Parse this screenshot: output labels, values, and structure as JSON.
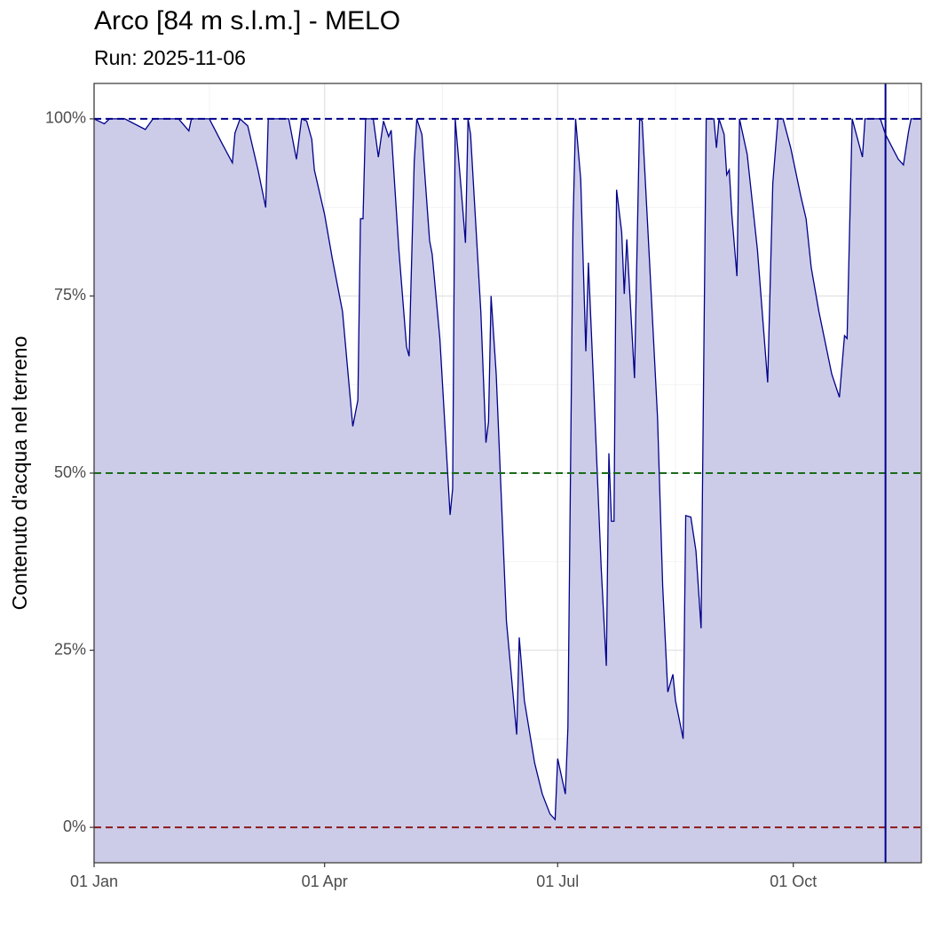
{
  "chart_data": {
    "type": "area",
    "title": "Arco [84 m s.l.m.] - MELO",
    "subtitle": "Run: 2025-11-06",
    "ylabel": "Contenuto d'acqua nel terreno",
    "x": [
      0,
      4,
      6,
      12,
      20,
      23,
      33,
      37,
      38,
      45,
      50,
      54,
      55,
      57,
      60,
      64,
      67,
      68,
      76,
      79,
      81,
      83,
      85,
      86,
      90,
      93,
      97,
      101,
      103,
      104,
      105,
      106,
      109,
      111,
      113,
      115,
      116,
      119,
      122,
      123,
      125,
      126,
      128,
      131,
      132,
      135,
      139,
      140,
      141,
      143,
      145,
      146,
      147,
      151,
      153,
      154,
      155,
      157,
      161,
      165,
      166,
      168,
      172,
      175,
      178,
      180,
      181,
      184,
      185,
      187,
      188,
      190,
      192,
      193,
      195,
      198,
      200,
      201,
      202,
      203,
      204,
      206,
      207,
      208,
      211,
      213,
      214,
      217,
      220,
      222,
      224,
      226,
      227,
      230,
      231,
      233,
      235,
      237,
      239,
      242,
      243,
      244,
      246,
      247,
      248,
      249,
      251,
      252,
      255,
      259,
      263,
      265,
      267,
      269,
      272,
      276,
      278,
      280,
      283,
      288,
      291,
      293,
      294,
      296,
      300,
      301,
      307,
      309,
      314,
      316,
      318,
      319,
      323
    ],
    "series": [
      {
        "color": "#00008b",
        "fill": "#cccce8",
        "values": [
          100,
          99.3,
          100,
          100,
          98.5,
          100,
          100,
          98.3,
          100,
          100,
          96.5,
          93.8,
          98,
          100,
          99,
          92.8,
          87.5,
          100,
          100,
          94.3,
          100,
          99.7,
          97.1,
          92.8,
          86.5,
          80.3,
          72.8,
          56.6,
          60.3,
          85.9,
          85.9,
          100,
          100,
          94.6,
          99.7,
          97.5,
          98.4,
          81.5,
          67.8,
          66.5,
          94,
          100,
          97.8,
          82.8,
          80.9,
          69,
          44.1,
          47.8,
          100,
          91.5,
          82.5,
          100,
          97.8,
          72.8,
          54.3,
          57.2,
          75,
          64,
          29.1,
          13.1,
          26.8,
          17.9,
          9.1,
          4.7,
          1.9,
          1.1,
          9.7,
          4.7,
          14.1,
          85.3,
          100,
          91.5,
          67.2,
          79.7,
          62.8,
          36.6,
          22.8,
          52.8,
          43.2,
          43.2,
          90,
          84,
          75.3,
          83,
          63.4,
          100,
          99.7,
          79,
          57.8,
          34.1,
          19.1,
          21.6,
          17.9,
          12.5,
          44,
          43.8,
          39,
          28.1,
          100,
          100,
          95.9,
          100,
          97.8,
          92.1,
          92.8,
          86.5,
          77.8,
          100,
          95,
          81.5,
          62.8,
          90.9,
          100,
          100,
          95.9,
          89,
          85.9,
          79,
          72.8,
          64,
          60.7,
          69.4,
          69,
          100,
          94.6,
          100,
          100,
          97.8,
          94.3,
          93.5,
          98.2,
          100,
          100
        ]
      }
    ],
    "xlim": [
      0,
      323
    ],
    "xticks": [
      {
        "value": 0,
        "label": "01 Jan"
      },
      {
        "value": 90,
        "label": "01 Apr"
      },
      {
        "value": 181,
        "label": "01 Jul"
      },
      {
        "value": 273,
        "label": "01 Oct"
      }
    ],
    "x_minor_ticks": [
      45,
      136,
      227,
      318
    ],
    "ylim": [
      -5,
      105
    ],
    "yticks": [
      {
        "value": 0,
        "label": "0%"
      },
      {
        "value": 25,
        "label": "25%"
      },
      {
        "value": 50,
        "label": "50%"
      },
      {
        "value": 75,
        "label": "75%"
      },
      {
        "value": 100,
        "label": "100%"
      }
    ],
    "y_minor_ticks": [
      12.5,
      37.5,
      62.5,
      87.5
    ],
    "hlines": [
      {
        "value": 100,
        "color": "#00008b"
      },
      {
        "value": 50,
        "color": "#1a6b1a"
      },
      {
        "value": 0,
        "color": "#8b1a1a"
      }
    ],
    "vlines": [
      {
        "value": 309,
        "color": "#00008b"
      }
    ],
    "grid": true
  }
}
